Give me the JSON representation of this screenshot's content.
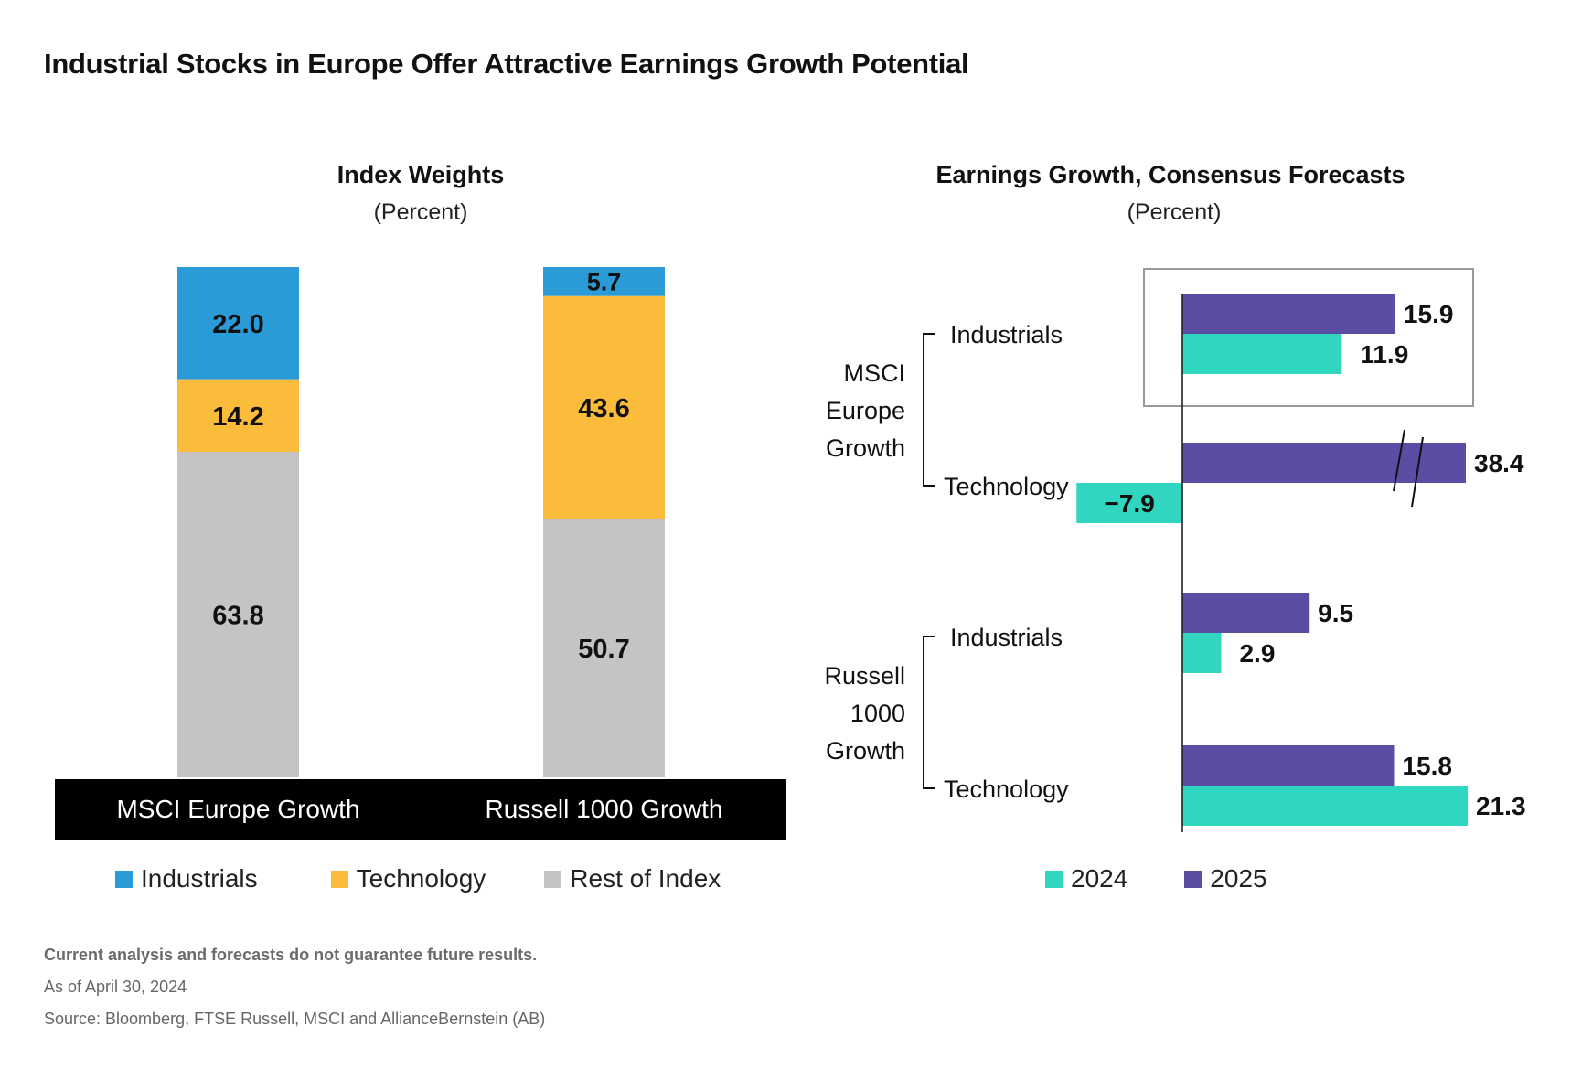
{
  "title": "Industrial Stocks in Europe Offer Attractive Earnings Growth Potential",
  "colors": {
    "industrials": "#2a9bd6",
    "technology": "#fbbc3c",
    "rest": "#c4c4c4",
    "y2024": "#31d6c1",
    "y2025": "#5a4da3",
    "band": "#000000",
    "highlight_box": "#999999"
  },
  "chart_data": [
    {
      "type": "bar",
      "stacked": true,
      "orientation": "vertical",
      "title": "Index Weights",
      "subtitle": "(Percent)",
      "categories": [
        "MSCI Europe Growth",
        "Russell 1000 Growth"
      ],
      "series": [
        {
          "name": "Industrials",
          "values": [
            22.0,
            5.7
          ],
          "labels": [
            "22.0",
            "5.7"
          ]
        },
        {
          "name": "Technology",
          "values": [
            14.2,
            43.6
          ],
          "labels": [
            "14.2",
            "43.6"
          ]
        },
        {
          "name": "Rest of Index",
          "values": [
            63.8,
            50.7
          ],
          "labels": [
            "63.8",
            "50.7"
          ]
        }
      ],
      "ylim": [
        0,
        100
      ],
      "grid": false,
      "legend": [
        "Industrials",
        "Technology",
        "Rest of Index"
      ],
      "legend_position": "bottom"
    },
    {
      "type": "bar",
      "orientation": "horizontal",
      "title": "Earnings Growth, Consensus Forecasts",
      "subtitle": "(Percent)",
      "groups": [
        {
          "name": "MSCI Europe Growth",
          "name_lines": [
            "MSCI",
            "Europe",
            "Growth"
          ],
          "sectors": [
            "Industrials",
            "Technology"
          ]
        },
        {
          "name": "Russell 1000 Growth",
          "name_lines": [
            "Russell",
            "1000",
            "Growth"
          ],
          "sectors": [
            "Industrials",
            "Technology"
          ]
        }
      ],
      "categories": [
        "MSCI Europe Growth – Industrials",
        "MSCI Europe Growth – Technology",
        "Russell 1000 Growth – Industrials",
        "Russell 1000 Growth – Technology"
      ],
      "series": [
        {
          "name": "2025",
          "values": [
            15.9,
            38.4,
            9.5,
            15.8
          ],
          "labels": [
            "15.9",
            "38.4",
            "9.5",
            "15.8"
          ]
        },
        {
          "name": "2024",
          "values": [
            11.9,
            -7.9,
            2.9,
            21.3
          ],
          "labels": [
            "11.9",
            "−7.9",
            "2.9",
            "21.3"
          ]
        }
      ],
      "annotations": [
        "Axis break on MSCI Europe Growth Technology 2025 bar (38.4)",
        "Highlight box around MSCI Europe Growth Industrials"
      ],
      "grid": false,
      "legend": [
        "2024",
        "2025"
      ],
      "legend_position": "bottom"
    }
  ],
  "footer": {
    "disclaimer": "Current analysis and forecasts do not guarantee future results.",
    "as_of": "As of April 30, 2024",
    "source": "Source: Bloomberg, FTSE Russell, MSCI and AllianceBernstein (AB)"
  }
}
